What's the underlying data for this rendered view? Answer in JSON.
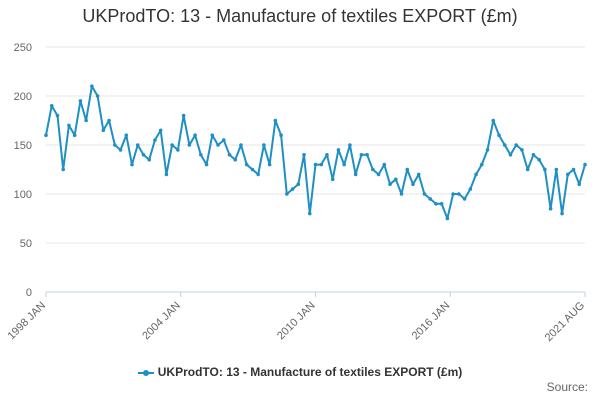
{
  "colors": {
    "series": "#1f8fc4",
    "grid": "#e6e6e6",
    "axis": "#c0d0e0",
    "text": "#333333"
  },
  "legend": {
    "label": "UKProdTO: 13 - Manufacture of textiles EXPORT (£m)"
  },
  "source_label": "Source:",
  "chart_data": {
    "type": "line",
    "title": "UKProdTO: 13 - Manufacture of textiles EXPORT (£m)",
    "xlabel": "",
    "ylabel": "",
    "ylim": [
      0,
      250
    ],
    "yticks": [
      "0",
      "50",
      "100",
      "150",
      "200",
      "250"
    ],
    "xticks": [
      "1998 JAN",
      "2004 JAN",
      "2010 JAN",
      "2016 JAN",
      "2021 AUG"
    ],
    "grid": true,
    "legend_position": "bottom",
    "series": [
      {
        "name": "UKProdTO: 13 - Manufacture of textiles EXPORT (£m)",
        "x": [
          "1998 JAN",
          "1998 APR",
          "1998 JUL",
          "1998 OCT",
          "1999 JAN",
          "1999 APR",
          "1999 JUL",
          "1999 OCT",
          "2000 JAN",
          "2000 APR",
          "2000 JUL",
          "2000 OCT",
          "2001 JAN",
          "2001 APR",
          "2001 JUL",
          "2001 OCT",
          "2002 JAN",
          "2002 APR",
          "2002 JUL",
          "2002 OCT",
          "2003 JAN",
          "2003 APR",
          "2003 JUL",
          "2003 OCT",
          "2004 JAN",
          "2004 APR",
          "2004 JUL",
          "2004 OCT",
          "2005 JAN",
          "2005 APR",
          "2005 JUL",
          "2005 OCT",
          "2006 JAN",
          "2006 APR",
          "2006 JUL",
          "2006 OCT",
          "2007 JAN",
          "2007 APR",
          "2007 JUL",
          "2007 OCT",
          "2008 JAN",
          "2008 APR",
          "2008 JUL",
          "2008 OCT",
          "2009 JAN",
          "2009 APR",
          "2009 JUL",
          "2009 OCT",
          "2010 JAN",
          "2010 APR",
          "2010 JUL",
          "2010 OCT",
          "2011 JAN",
          "2011 APR",
          "2011 JUL",
          "2011 OCT",
          "2012 JAN",
          "2012 APR",
          "2012 JUL",
          "2012 OCT",
          "2013 JAN",
          "2013 APR",
          "2013 JUL",
          "2013 OCT",
          "2014 JAN",
          "2014 APR",
          "2014 JUL",
          "2014 OCT",
          "2015 JAN",
          "2015 APR",
          "2015 JUL",
          "2015 OCT",
          "2016 JAN",
          "2016 APR",
          "2016 JUL",
          "2016 OCT",
          "2017 JAN",
          "2017 APR",
          "2017 JUL",
          "2017 OCT",
          "2018 JAN",
          "2018 APR",
          "2018 JUL",
          "2018 OCT",
          "2019 JAN",
          "2019 APR",
          "2019 JUL",
          "2019 OCT",
          "2020 JAN",
          "2020 APR",
          "2020 JUL",
          "2020 OCT",
          "2021 JAN",
          "2021 APR",
          "2021 AUG"
        ],
        "values": [
          160,
          190,
          180,
          125,
          170,
          160,
          195,
          175,
          210,
          200,
          165,
          175,
          150,
          145,
          160,
          130,
          150,
          140,
          135,
          155,
          165,
          120,
          150,
          145,
          180,
          150,
          160,
          140,
          130,
          160,
          150,
          155,
          140,
          135,
          150,
          130,
          125,
          120,
          150,
          130,
          175,
          160,
          100,
          105,
          110,
          140,
          80,
          130,
          130,
          140,
          115,
          145,
          130,
          150,
          120,
          140,
          140,
          125,
          120,
          130,
          110,
          115,
          100,
          125,
          110,
          120,
          100,
          95,
          90,
          90,
          75,
          100,
          100,
          95,
          105,
          120,
          130,
          145,
          175,
          160,
          150,
          140,
          150,
          145,
          125,
          140,
          135,
          125,
          85,
          125,
          80,
          120,
          125,
          110,
          130
        ]
      }
    ]
  }
}
